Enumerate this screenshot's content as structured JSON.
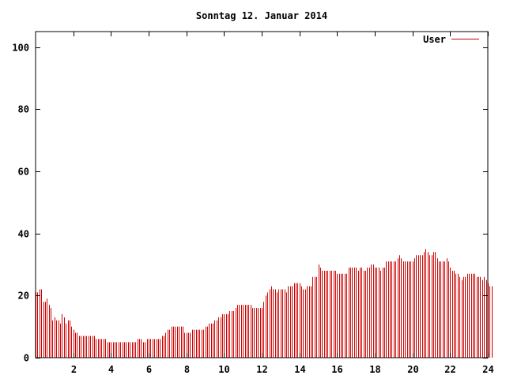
{
  "chart_data": {
    "type": "bar",
    "title": "Sonntag 12. Januar 2014",
    "xlabel": "",
    "ylabel": "",
    "xlim": [
      0,
      24
    ],
    "ylim": [
      0,
      105
    ],
    "x_ticks": [
      "2",
      "4",
      "6",
      "8",
      "10",
      "12",
      "14",
      "16",
      "18",
      "20",
      "22",
      "24"
    ],
    "y_ticks": [
      "0",
      "20",
      "40",
      "60",
      "80",
      "100"
    ],
    "grid": false,
    "legend_position": "top-right",
    "series": [
      {
        "name": "User",
        "color": "#cc0000",
        "bar_interval_hours": 0.1,
        "values": [
          21,
          21,
          22,
          22,
          18,
          18,
          19,
          17,
          16,
          12,
          13,
          12,
          12,
          11,
          14,
          13,
          11,
          12,
          12,
          10,
          9,
          8,
          8,
          7,
          7,
          7,
          7,
          7,
          7,
          7,
          7,
          7,
          6,
          6,
          6,
          6,
          6,
          6,
          5,
          5,
          5,
          5,
          5,
          5,
          5,
          5,
          5,
          5,
          5,
          5,
          5,
          5,
          5,
          5,
          6,
          6,
          6,
          5,
          5,
          6,
          6,
          6,
          6,
          6,
          6,
          6,
          6,
          7,
          7,
          8,
          9,
          9,
          10,
          10,
          10,
          10,
          10,
          10,
          10,
          8,
          8,
          8,
          8,
          9,
          9,
          9,
          9,
          9,
          9,
          9,
          10,
          10,
          11,
          11,
          11,
          12,
          12,
          13,
          13,
          14,
          14,
          14,
          14,
          15,
          15,
          15,
          16,
          17,
          17,
          17,
          17,
          17,
          17,
          17,
          17,
          16,
          16,
          16,
          16,
          16,
          16,
          18,
          20,
          21,
          22,
          23,
          22,
          22,
          21,
          22,
          22,
          22,
          22,
          21,
          23,
          23,
          23,
          24,
          24,
          24,
          24,
          23,
          22,
          22,
          23,
          23,
          23,
          26,
          26,
          26,
          30,
          29,
          28,
          28,
          28,
          28,
          28,
          28,
          28,
          28,
          27,
          27,
          27,
          27,
          27,
          27,
          29,
          29,
          29,
          29,
          29,
          28,
          29,
          29,
          28,
          28,
          29,
          29,
          30,
          30,
          29,
          29,
          29,
          28,
          29,
          29,
          31,
          31,
          31,
          31,
          31,
          31,
          32,
          33,
          32,
          31,
          31,
          31,
          31,
          31,
          31,
          32,
          33,
          33,
          33,
          33,
          34,
          35,
          34,
          33,
          33,
          34,
          34,
          32,
          31,
          31,
          31,
          31,
          32,
          31,
          29,
          28,
          28,
          27,
          27,
          26,
          25,
          26,
          26,
          27,
          27,
          27,
          27,
          27,
          26,
          26,
          26,
          25,
          26,
          25,
          24,
          23,
          23
        ]
      }
    ]
  }
}
